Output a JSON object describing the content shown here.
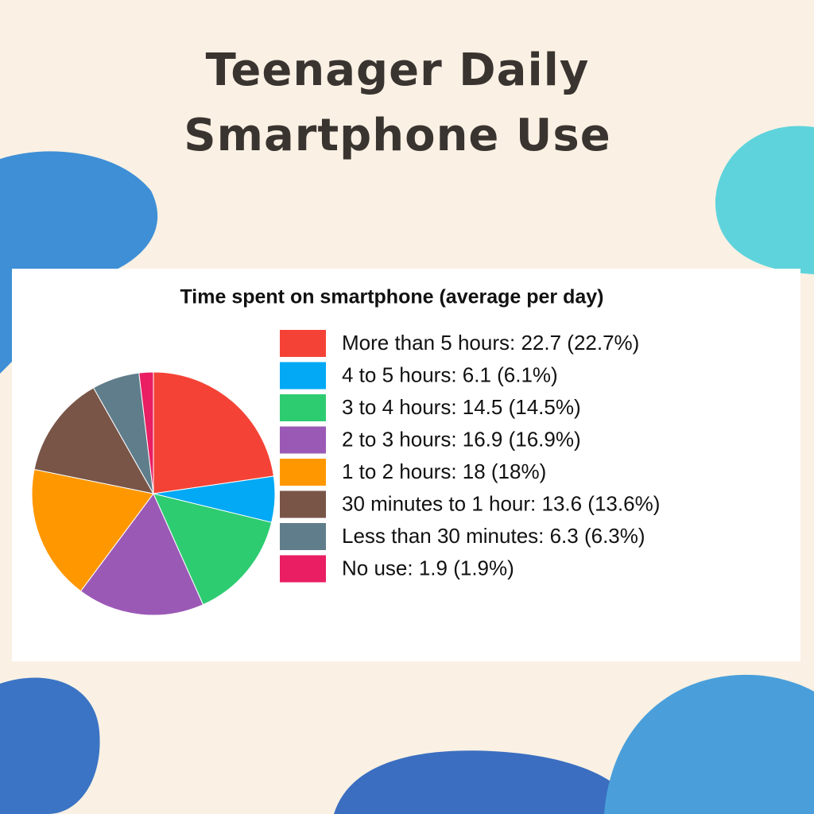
{
  "title": "Teenager Daily Smartphone Use",
  "chart_data": {
    "type": "pie",
    "title": "Time spent on smartphone (average per day)",
    "categories": [
      "More than 5 hours: 22.7 (22.7%)",
      "4 to 5 hours: 6.1 (6.1%)",
      "3 to 4 hours: 14.5 (14.5%)",
      "2 to 3 hours: 16.9 (16.9%)",
      "1 to 2 hours: 18 (18%)",
      "30 minutes to 1 hour: 13.6 (13.6%)",
      "Less than 30 minutes: 6.3 (6.3%)",
      "No use: 1.9 (1.9%)"
    ],
    "values": [
      22.7,
      6.1,
      14.5,
      16.9,
      18,
      13.6,
      6.3,
      1.9
    ],
    "colors": [
      "#f44336",
      "#03a9f4",
      "#2ecc71",
      "#9b59b6",
      "#ff9800",
      "#795548",
      "#607d8b",
      "#e91e63"
    ],
    "legend": "right"
  }
}
